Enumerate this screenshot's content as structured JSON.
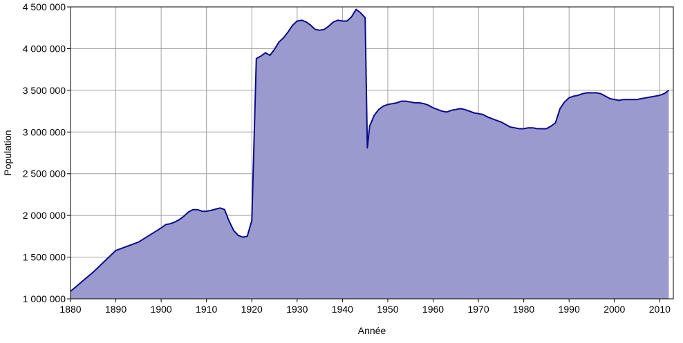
{
  "chart_data": {
    "type": "area",
    "title": "",
    "xlabel": "Année",
    "ylabel": "Population",
    "xlim": [
      1880,
      2013
    ],
    "ylim": [
      1000000,
      4500000
    ],
    "grid": true,
    "x_ticks": [
      1880,
      1890,
      1900,
      1910,
      1920,
      1930,
      1940,
      1950,
      1960,
      1970,
      1980,
      1990,
      2000,
      2010
    ],
    "y_ticks": [
      1000000,
      1500000,
      2000000,
      2500000,
      3000000,
      3500000,
      4000000,
      4500000
    ],
    "y_tick_labels": [
      "1 000 000",
      "1 500 000",
      "2 000 000",
      "2 500 000",
      "3 000 000",
      "3 500 000",
      "4 000 000",
      "4 500 000"
    ],
    "colors": {
      "fill": "#9a9acf",
      "line": "#0a0a8a",
      "grid": "#a0a0a0"
    },
    "series": [
      {
        "x": [
          1880,
          1885,
          1890,
          1895,
          1900,
          1901,
          1902,
          1903,
          1904,
          1905,
          1906,
          1907,
          1908,
          1909,
          1910,
          1911,
          1912,
          1913,
          1914,
          1915,
          1916,
          1917,
          1918,
          1919,
          1920,
          1921,
          1922,
          1923,
          1924,
          1925,
          1926,
          1927,
          1928,
          1929,
          1930,
          1931,
          1932,
          1933,
          1934,
          1935,
          1936,
          1937,
          1938,
          1939,
          1940,
          1941,
          1942,
          1943,
          1944,
          1945,
          1945.5,
          1946,
          1947,
          1948,
          1949,
          1950,
          1951,
          1952,
          1953,
          1954,
          1955,
          1956,
          1957,
          1958,
          1959,
          1960,
          1961,
          1962,
          1963,
          1964,
          1965,
          1966,
          1967,
          1968,
          1969,
          1970,
          1971,
          1972,
          1973,
          1974,
          1975,
          1976,
          1977,
          1978,
          1979,
          1980,
          1981,
          1982,
          1983,
          1984,
          1985,
          1986,
          1987,
          1988,
          1989,
          1990,
          1991,
          1992,
          1993,
          1994,
          1995,
          1996,
          1997,
          1998,
          1999,
          2000,
          2001,
          2002,
          2003,
          2004,
          2005,
          2006,
          2007,
          2008,
          2009,
          2010,
          2011,
          2012
        ],
        "values": [
          1090000,
          1320000,
          1580000,
          1680000,
          1850000,
          1890000,
          1900000,
          1920000,
          1950000,
          1990000,
          2040000,
          2070000,
          2070000,
          2050000,
          2050000,
          2060000,
          2075000,
          2090000,
          2070000,
          1930000,
          1820000,
          1760000,
          1740000,
          1750000,
          1940000,
          3880000,
          3910000,
          3950000,
          3920000,
          3990000,
          4080000,
          4130000,
          4200000,
          4280000,
          4330000,
          4340000,
          4320000,
          4280000,
          4230000,
          4220000,
          4230000,
          4270000,
          4320000,
          4340000,
          4330000,
          4330000,
          4380000,
          4470000,
          4430000,
          4370000,
          2810000,
          3070000,
          3200000,
          3270000,
          3310000,
          3330000,
          3340000,
          3350000,
          3370000,
          3370000,
          3360000,
          3350000,
          3350000,
          3340000,
          3320000,
          3290000,
          3270000,
          3250000,
          3240000,
          3260000,
          3270000,
          3280000,
          3270000,
          3250000,
          3230000,
          3220000,
          3210000,
          3180000,
          3160000,
          3140000,
          3120000,
          3090000,
          3060000,
          3050000,
          3040000,
          3040000,
          3050000,
          3050000,
          3040000,
          3040000,
          3040000,
          3070000,
          3110000,
          3280000,
          3360000,
          3410000,
          3430000,
          3440000,
          3460000,
          3470000,
          3470000,
          3470000,
          3460000,
          3430000,
          3400000,
          3390000,
          3380000,
          3390000,
          3390000,
          3390000,
          3390000,
          3400000,
          3410000,
          3420000,
          3430000,
          3440000,
          3460000,
          3500000
        ]
      }
    ]
  }
}
